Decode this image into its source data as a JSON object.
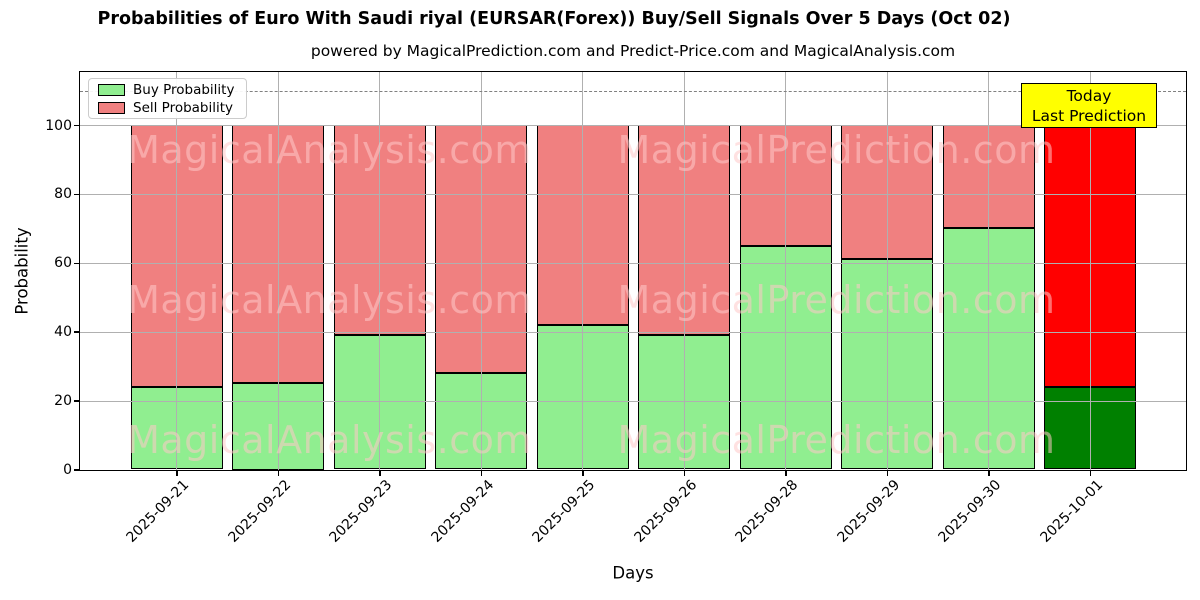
{
  "title": "Probabilities of Euro With Saudi riyal (EURSAR(Forex)) Buy/Sell Signals Over 5 Days (Oct 02)",
  "subtitle": "powered by MagicalPrediction.com and Predict-Price.com and MagicalAnalysis.com",
  "legend": {
    "items": [
      {
        "label": "Buy Probability",
        "color": "#90ee90"
      },
      {
        "label": "Sell Probability",
        "color": "#f08080"
      }
    ]
  },
  "annotation_box": {
    "lines": [
      "Today",
      "Last Prediction"
    ],
    "bg_color": "#ffff00",
    "border_color": "#000000"
  },
  "watermarks": {
    "left_text": "MagicalAnalysis.com",
    "right_text": "MagicalPrediction.com"
  },
  "chart_data": {
    "type": "bar",
    "stacked": true,
    "title": "Probabilities of Euro With Saudi riyal (EURSAR(Forex)) Buy/Sell Signals Over 5 Days (Oct 02)",
    "xlabel": "Days",
    "ylabel": "Probability",
    "categories": [
      "2025-09-21",
      "2025-09-22",
      "2025-09-23",
      "2025-09-24",
      "2025-09-25",
      "2025-09-26",
      "2025-09-28",
      "2025-09-29",
      "2025-09-30",
      "2025-10-01"
    ],
    "series": [
      {
        "name": "Buy Probability",
        "color": "#90ee90",
        "values": [
          24,
          25,
          39,
          28,
          42,
          39,
          65,
          61,
          70,
          24
        ]
      },
      {
        "name": "Sell Probability",
        "color": "#f08080",
        "values": [
          76,
          75,
          61,
          72,
          58,
          61,
          35,
          39,
          30,
          76
        ]
      }
    ],
    "today_bar": {
      "category": "2025-10-01",
      "buy_color": "#008000",
      "sell_color": "#ff0000"
    },
    "yticks": [
      0,
      20,
      40,
      60,
      80,
      100
    ],
    "ylim": [
      0,
      115
    ],
    "reference_line": {
      "y": 110,
      "style": "dashed",
      "color": "#808080"
    },
    "grid": true,
    "bar_edge_color": "#000000",
    "legend_position": "upper left"
  }
}
